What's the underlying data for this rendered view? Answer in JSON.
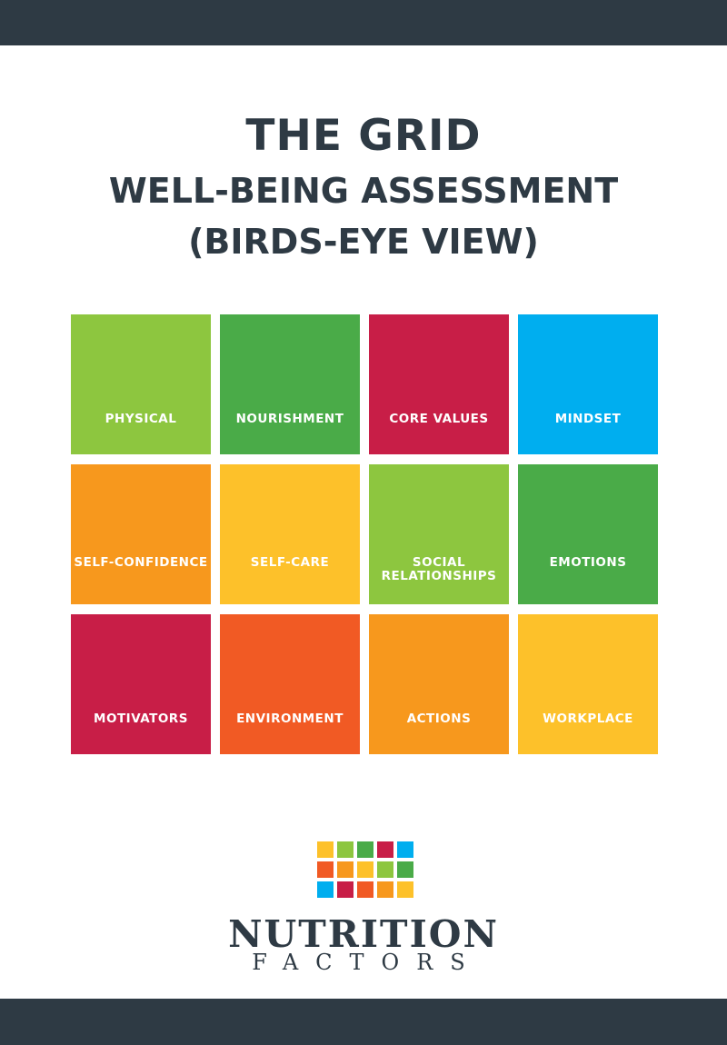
{
  "header": {
    "title": "THE GRID",
    "subtitle_line1": "WELL-BEING ASSESSMENT",
    "subtitle_line2": "(BIRDS-EYE VIEW)"
  },
  "tiles": [
    {
      "label": "PHYSICAL",
      "color": "#8dc63f"
    },
    {
      "label": "NOURISHMENT",
      "color": "#4aab48"
    },
    {
      "label": "CORE VALUES",
      "color": "#c81e47"
    },
    {
      "label": "MINDSET",
      "color": "#00aeef"
    },
    {
      "label": "SELF-CONFIDENCE",
      "color": "#f7981d"
    },
    {
      "label": "SELF-CARE",
      "color": "#fdc12a"
    },
    {
      "label": "SOCIAL\nRELATIONSHIPS",
      "color": "#8dc63f"
    },
    {
      "label": "EMOTIONS",
      "color": "#4aab48"
    },
    {
      "label": "MOTIVATORS",
      "color": "#c81e47"
    },
    {
      "label": "ENVIRONMENT",
      "color": "#f15a24"
    },
    {
      "label": "ACTIONS",
      "color": "#f7981d"
    },
    {
      "label": "WORKPLACE",
      "color": "#fdc12a"
    }
  ],
  "logo": {
    "squares": [
      "#fdc12a",
      "#8dc63f",
      "#4aab48",
      "#c81e47",
      "#00aeef",
      "#f15a24",
      "#f7981d",
      "#fdc12a",
      "#8dc63f",
      "#4aab48",
      "#00aeef",
      "#c81e47",
      "#f15a24",
      "#f7981d",
      "#fdc12a"
    ],
    "name_line1": "NUTRITION",
    "name_line2": "FACTORS",
    "trademark": "™"
  },
  "colors": {
    "dark": "#2e3a44"
  }
}
